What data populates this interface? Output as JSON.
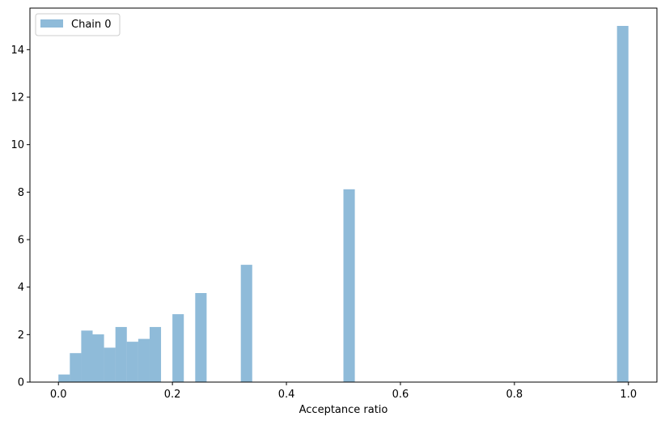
{
  "chart_data": {
    "type": "bar",
    "title": "",
    "xlabel": "Acceptance ratio",
    "ylabel": "",
    "xlim": [
      -0.05,
      1.05
    ],
    "ylim": [
      0,
      15.75
    ],
    "xticks": [
      0.0,
      0.2,
      0.4,
      0.6,
      0.8,
      1.0
    ],
    "xtick_labels": [
      "0.0",
      "0.2",
      "0.4",
      "0.6",
      "0.8",
      "1.0"
    ],
    "yticks": [
      0,
      2,
      4,
      6,
      8,
      10,
      12,
      14
    ],
    "ytick_labels": [
      "0",
      "2",
      "4",
      "6",
      "8",
      "10",
      "12",
      "14"
    ],
    "grid": false,
    "legend": {
      "placement": "top-left",
      "entries": [
        "Chain 0"
      ]
    },
    "series": [
      {
        "name": "Chain 0",
        "color": "#1f77b4",
        "alpha": 0.5,
        "bin_width": 0.02,
        "bins": [
          {
            "x": 0.0,
            "height": 0.32
          },
          {
            "x": 0.02,
            "height": 1.22
          },
          {
            "x": 0.04,
            "height": 2.17
          },
          {
            "x": 0.06,
            "height": 2.01
          },
          {
            "x": 0.08,
            "height": 1.45
          },
          {
            "x": 0.1,
            "height": 2.32
          },
          {
            "x": 0.12,
            "height": 1.7
          },
          {
            "x": 0.14,
            "height": 1.82
          },
          {
            "x": 0.16,
            "height": 2.32
          },
          {
            "x": 0.2,
            "height": 2.86
          },
          {
            "x": 0.24,
            "height": 3.75
          },
          {
            "x": 0.32,
            "height": 4.94
          },
          {
            "x": 0.5,
            "height": 8.12
          },
          {
            "x": 0.98,
            "height": 15.0
          }
        ]
      }
    ]
  }
}
